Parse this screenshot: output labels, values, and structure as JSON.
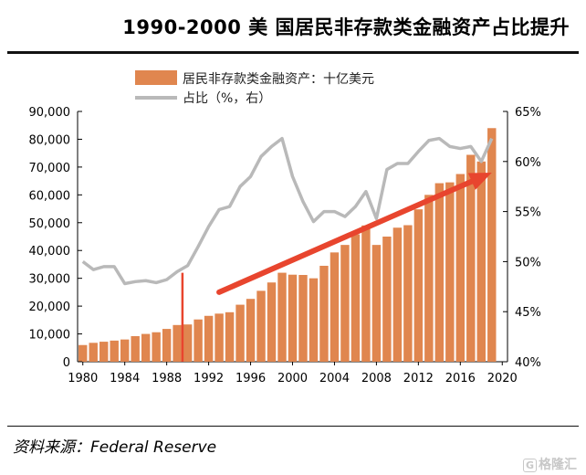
{
  "title": "1990-2000 美 国居民非存款类金融资产占比提升",
  "source": "资料来源：Federal Reserve",
  "watermark": {
    "box": "G",
    "text": "格隆汇"
  },
  "colors": {
    "bar": "#E0864F",
    "line": "#B9B9B9",
    "marker": "#E8452E",
    "arrow": "#E8452E"
  },
  "chart_data": {
    "type": "bar+line",
    "legend": [
      "居民非存款类金融资产：十亿美元",
      "占比（%，右）"
    ],
    "x_tick_labels": [
      "1980",
      "1984",
      "1988",
      "1992",
      "1996",
      "2000",
      "2004",
      "2008",
      "2012",
      "2016",
      "2020"
    ],
    "y_left": {
      "min": 0,
      "max": 90000,
      "tick_labels": [
        "0",
        "10,000",
        "20,000",
        "30,000",
        "40,000",
        "50,000",
        "60,000",
        "70,000",
        "80,000",
        "90,000"
      ]
    },
    "y_right": {
      "min": 40,
      "max": 65,
      "tick_labels": [
        "40%",
        "45%",
        "50%",
        "55%",
        "60%",
        "65%"
      ]
    },
    "years": [
      1980,
      1981,
      1982,
      1983,
      1984,
      1985,
      1986,
      1987,
      1988,
      1989,
      1990,
      1991,
      1992,
      1993,
      1994,
      1995,
      1996,
      1997,
      1998,
      1999,
      2000,
      2001,
      2002,
      2003,
      2004,
      2005,
      2006,
      2007,
      2008,
      2009,
      2010,
      2011,
      2012,
      2013,
      2014,
      2015,
      2016,
      2017,
      2018,
      2019
    ],
    "series": [
      {
        "name": "居民非存款类金融资产：十亿美元",
        "type": "bar",
        "axis": "left",
        "values": [
          6000,
          6800,
          7200,
          7600,
          8000,
          9200,
          10000,
          10600,
          11800,
          13200,
          13400,
          15200,
          16500,
          17300,
          17800,
          20500,
          22600,
          25500,
          28500,
          32000,
          31300,
          31200,
          30000,
          34500,
          39300,
          42000,
          45800,
          49000,
          42000,
          45000,
          48200,
          49100,
          54800,
          60000,
          64200,
          64500,
          67500,
          74400,
          72000,
          84000
        ]
      },
      {
        "name": "占比（%，右）",
        "type": "line",
        "axis": "right",
        "values": [
          50.0,
          49.2,
          49.5,
          49.5,
          47.8,
          48.0,
          48.1,
          47.9,
          48.2,
          49.0,
          49.6,
          51.5,
          53.5,
          55.2,
          55.5,
          57.5,
          58.5,
          60.5,
          61.5,
          62.3,
          58.5,
          56.0,
          54.0,
          55.0,
          55.0,
          54.5,
          55.5,
          57.0,
          54.3,
          59.2,
          59.8,
          59.8,
          61.0,
          62.1,
          62.3,
          61.5,
          61.3,
          61.5,
          60.0,
          62.3
        ]
      }
    ],
    "annotations": [
      {
        "type": "vertical-line",
        "x": 1989.5,
        "y_from": 0,
        "y_to": 32000
      },
      {
        "type": "arrow",
        "from": {
          "x": 1993,
          "y": 25000
        },
        "to": {
          "x": 2019,
          "y": 68000
        }
      }
    ]
  }
}
